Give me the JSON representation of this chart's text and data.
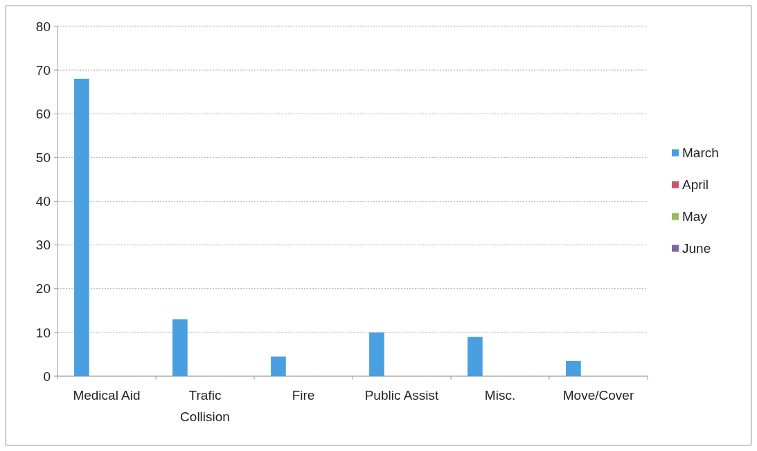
{
  "chart_data": {
    "type": "bar",
    "categories": [
      "Medical Aid",
      "Trafic Collision",
      "Fire",
      "Public Assist",
      "Misc.",
      "Move/Cover"
    ],
    "series": [
      {
        "name": "March",
        "color": "#4a9fe0",
        "values": [
          68,
          13,
          4.5,
          10,
          9,
          3.5
        ]
      },
      {
        "name": "April",
        "color": "#c9566a",
        "values": [
          null,
          null,
          null,
          null,
          null,
          null
        ]
      },
      {
        "name": "May",
        "color": "#9bbb59",
        "values": [
          null,
          null,
          null,
          null,
          null,
          null
        ]
      },
      {
        "name": "June",
        "color": "#8064a2",
        "values": [
          null,
          null,
          null,
          null,
          null,
          null
        ]
      }
    ],
    "ylim": [
      0,
      80
    ],
    "yticks": [
      0,
      10,
      20,
      30,
      40,
      50,
      60,
      70,
      80
    ],
    "grid": "y",
    "legend": "right"
  }
}
